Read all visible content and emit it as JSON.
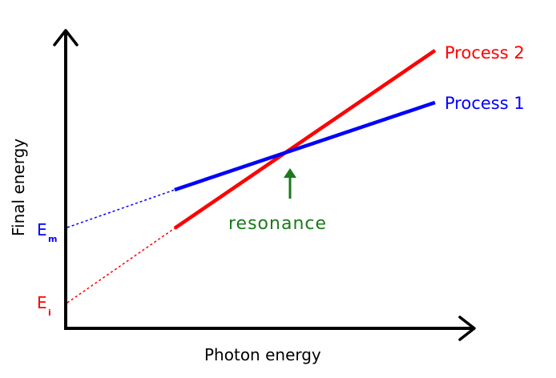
{
  "axes": {
    "x_label": "Photon energy",
    "y_label": "Final energy"
  },
  "processes": [
    {
      "label": "Process 2",
      "color": "#ff0000"
    },
    {
      "label": "Process 1",
      "color": "#0000ff"
    }
  ],
  "markers": {
    "em_letter": "E",
    "em_sub": "m",
    "ei_letter": "E",
    "ei_sub": "i"
  },
  "annotation": {
    "text": "resonance",
    "color": "#1a7a1a"
  },
  "colors": {
    "axis": "#000000",
    "red": "#ff0000",
    "blue": "#0000ff",
    "green": "#1a7a1a"
  }
}
